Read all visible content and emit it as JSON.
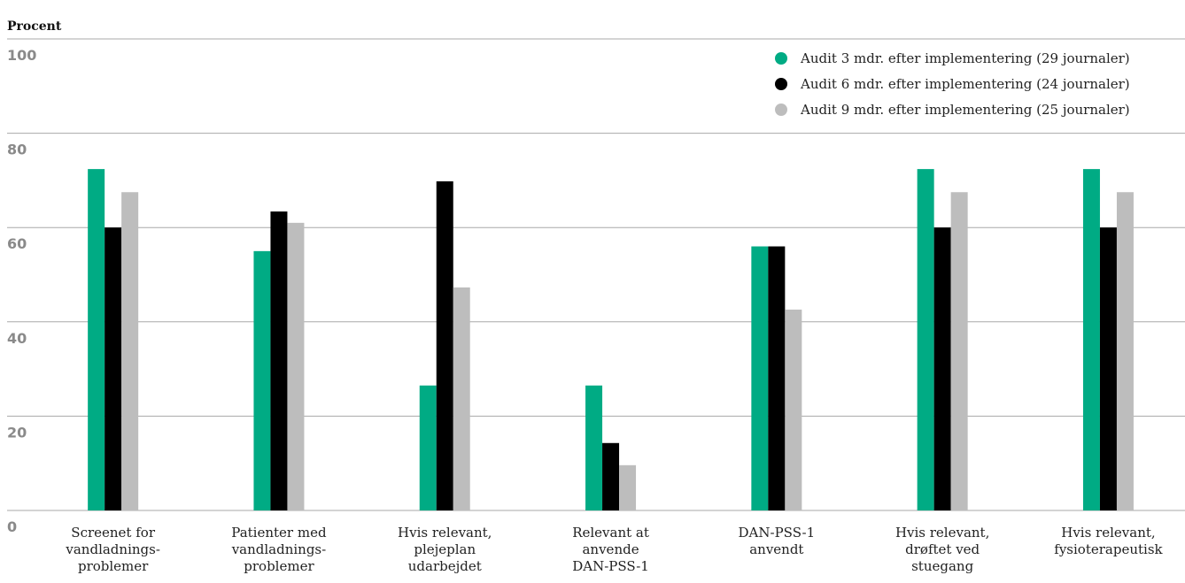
{
  "chart_data": {
    "type": "bar",
    "y_label": "Procent",
    "categories": [
      [
        "Screenet for",
        "vandladnings-",
        "problemer"
      ],
      [
        "Patienter med",
        "vandladnings-",
        "problemer"
      ],
      [
        "Hvis relevant,",
        "plejeplan",
        "udarbejdet"
      ],
      [
        "Relevant at",
        "anvende",
        "DAN-PSS-1"
      ],
      [
        "DAN-PSS-1",
        "anvendt"
      ],
      [
        "Hvis relevant,",
        "drøftet ved",
        "stuegang"
      ],
      [
        "Hvis relevant,",
        "fysioterapeutisk"
      ]
    ],
    "series": [
      {
        "name": "Audit 3 mdr. efter implementering (29 journaler)",
        "color": "#00ab84",
        "values": [
          72.4,
          55,
          26.5,
          26.5,
          56,
          72.4,
          72.4
        ]
      },
      {
        "name": "Audit 6 mdr. efter implementering (24 journaler)",
        "color": "#000000",
        "values": [
          60,
          63.4,
          69.8,
          14.3,
          56,
          60,
          60
        ]
      },
      {
        "name": "Audit 9 mdr. efter implementering (25 journaler)",
        "color": "#bdbdbd",
        "values": [
          67.5,
          61,
          47.3,
          9.6,
          42.6,
          67.5,
          67.5
        ]
      }
    ],
    "ylim": [
      0,
      100
    ],
    "yticks": [
      0,
      20,
      40,
      60,
      80,
      100
    ],
    "grid": true,
    "legend": "top-right"
  }
}
